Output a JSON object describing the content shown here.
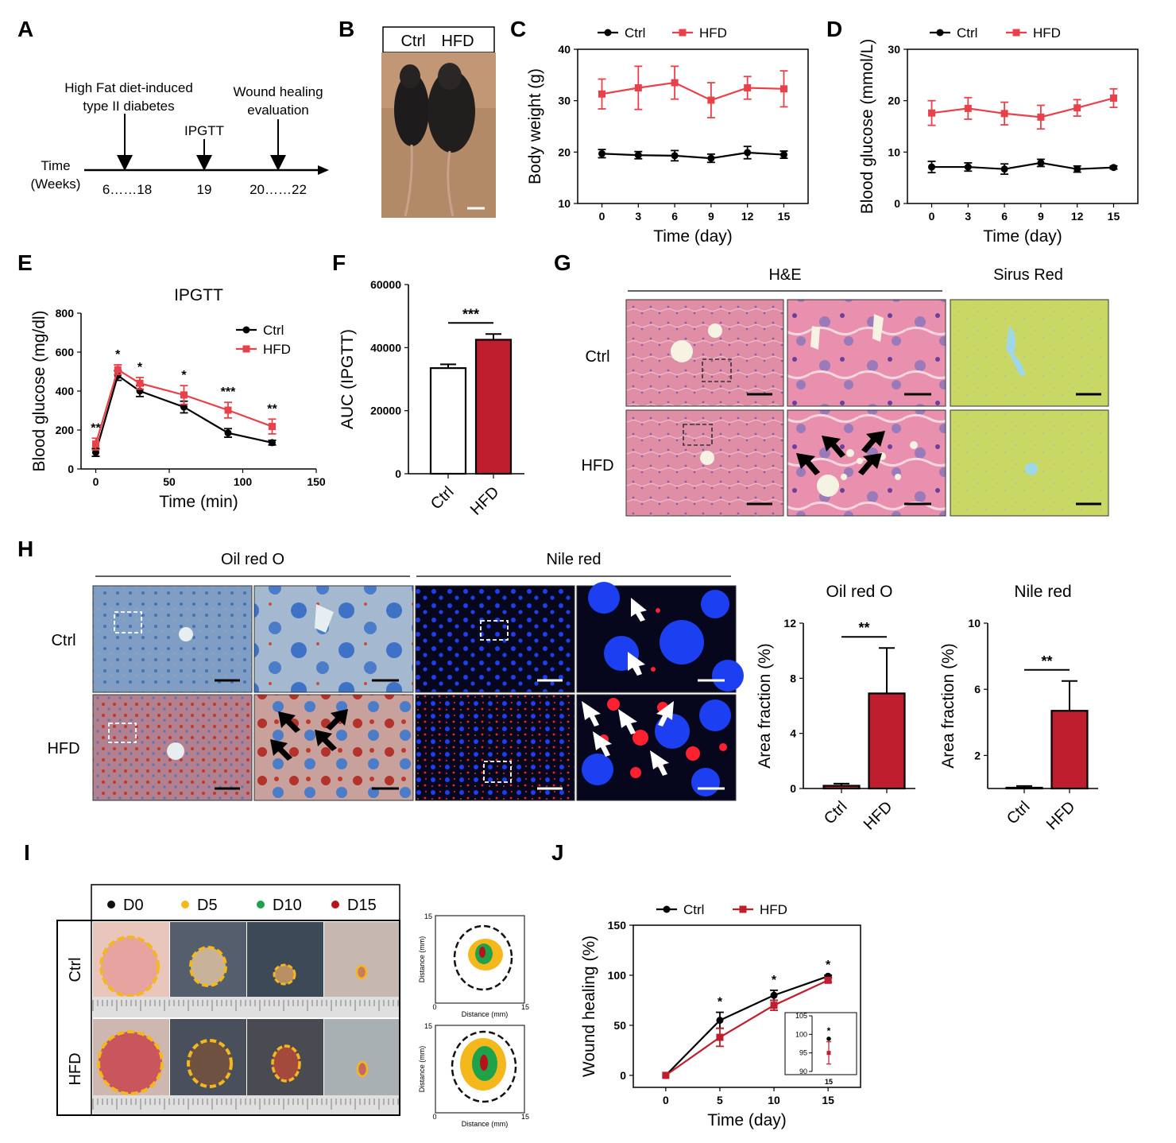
{
  "panel_labels": [
    "A",
    "B",
    "C",
    "D",
    "E",
    "F",
    "G",
    "H",
    "I",
    "J"
  ],
  "panel_a": {
    "event1": [
      "High Fat diet-induced",
      "type II diabetes"
    ],
    "event2": "IPGTT",
    "event3": [
      "Wound healing",
      "evaluation"
    ],
    "axis_label": [
      "Time",
      "(Weeks)"
    ],
    "ticks": [
      "6……18",
      "19",
      "20……22"
    ]
  },
  "panel_b": {
    "labels": [
      "Ctrl",
      "HFD"
    ]
  },
  "panel_g": {
    "headers": [
      "H&E",
      "Sirus Red"
    ],
    "rows": [
      "Ctrl",
      "HFD"
    ],
    "colors": {
      "he": "#df8ea6",
      "he_zoom": "#e890ad",
      "sirius": "#c9d765",
      "vessel": "#9ed8e8",
      "fat": "#f6f3e3"
    }
  },
  "panel_h": {
    "headers": [
      "Oil red O",
      "Nile red"
    ],
    "rows": [
      "Ctrl",
      "HFD"
    ],
    "colors": {
      "oil_ctrl": "#7f9ec5",
      "oil_hfd": "#b38090",
      "nile_bg": "#06061c",
      "nucleus": "#1d3ff2",
      "lipid": "#ff2030"
    }
  },
  "panel_i": {
    "legend": [
      {
        "label": "D0",
        "color": "#111111"
      },
      {
        "label": "D5",
        "color": "#f5b81c"
      },
      {
        "label": "D10",
        "color": "#1fa34a"
      },
      {
        "label": "D15",
        "color": "#b7131a"
      }
    ],
    "rows": [
      "Ctrl",
      "HFD"
    ],
    "map_axis": {
      "xlabel": "Distance (mm)",
      "ylabel": "Distance (mm)",
      "ticks": [
        "0",
        "15"
      ]
    }
  },
  "chart_data": [
    {
      "panel": "C",
      "type": "line",
      "x": [
        0,
        3,
        6,
        9,
        12,
        15
      ],
      "series": [
        {
          "name": "Ctrl",
          "color": "#000000",
          "marker": "circle",
          "values": [
            19.7,
            19.4,
            19.3,
            18.8,
            19.9,
            19.5
          ],
          "err": [
            0.8,
            0.7,
            1.0,
            0.8,
            1.2,
            0.7
          ]
        },
        {
          "name": "HFD",
          "color": "#e8414b",
          "marker": "square",
          "values": [
            31.3,
            32.5,
            33.5,
            30.1,
            32.5,
            32.3
          ],
          "err": [
            2.9,
            4.2,
            3.2,
            3.4,
            2.2,
            3.5
          ]
        }
      ],
      "xlabel": "Time (day)",
      "ylabel": "Body weight (g)",
      "xlim": [
        -2,
        17
      ],
      "ylim": [
        10,
        40
      ],
      "yticks": [
        10,
        20,
        30,
        40
      ],
      "legend": "top"
    },
    {
      "panel": "D",
      "type": "line",
      "x": [
        0,
        3,
        6,
        9,
        12,
        15
      ],
      "series": [
        {
          "name": "Ctrl",
          "color": "#000000",
          "marker": "circle",
          "values": [
            7.1,
            7.1,
            6.7,
            7.9,
            6.7,
            7.0
          ],
          "err": [
            1.1,
            0.8,
            1.0,
            0.7,
            0.6,
            0.3
          ]
        },
        {
          "name": "HFD",
          "color": "#e8414b",
          "marker": "square",
          "values": [
            17.6,
            18.5,
            17.5,
            16.8,
            18.6,
            20.5
          ],
          "err": [
            2.4,
            2.1,
            2.2,
            2.3,
            1.6,
            1.8
          ]
        }
      ],
      "xlabel": "Time (day)",
      "ylabel": "Blood glucose (mmol/L)",
      "xlim": [
        -2,
        17
      ],
      "ylim": [
        0,
        30
      ],
      "yticks": [
        0,
        10,
        20,
        30
      ],
      "legend": "top"
    },
    {
      "panel": "E",
      "type": "line",
      "title": "IPGTT",
      "x": [
        0,
        15,
        30,
        60,
        90,
        120
      ],
      "series": [
        {
          "name": "Ctrl",
          "color": "#000000",
          "marker": "circle",
          "values": [
            85,
            480,
            400,
            318,
            185,
            135
          ],
          "err": [
            20,
            25,
            28,
            30,
            22,
            12
          ]
        },
        {
          "name": "HFD",
          "color": "#e8414b",
          "marker": "square",
          "values": [
            128,
            510,
            440,
            380,
            302,
            218
          ],
          "err": [
            30,
            25,
            30,
            48,
            40,
            38
          ]
        }
      ],
      "annotations": [
        {
          "x": 0,
          "text": "**"
        },
        {
          "x": 15,
          "text": "*"
        },
        {
          "x": 30,
          "text": "*"
        },
        {
          "x": 60,
          "text": "*"
        },
        {
          "x": 90,
          "text": "***"
        },
        {
          "x": 120,
          "text": "**"
        }
      ],
      "xlabel": "Time (min)",
      "ylabel": "Blood glucose (mg/dl)",
      "xlim": [
        -10,
        150
      ],
      "ylim": [
        0,
        800
      ],
      "xticks": [
        0,
        50,
        100,
        150
      ],
      "yticks": [
        0,
        200,
        400,
        600,
        800
      ],
      "legend": "top-right"
    },
    {
      "panel": "F",
      "type": "bar",
      "categories": [
        "Ctrl",
        "HFD"
      ],
      "values": [
        33500,
        42500
      ],
      "err": [
        1200,
        1800
      ],
      "colors": [
        "#ffffff",
        "#be1e2d"
      ],
      "significance": "***",
      "xlabel": "",
      "ylabel": "AUC (IPGTT)",
      "ylim": [
        0,
        60000
      ],
      "yticks": [
        0,
        20000,
        40000,
        60000
      ]
    },
    {
      "panel": "H",
      "type": "bar",
      "title": "Oil red O",
      "categories": [
        "Ctrl",
        "HFD"
      ],
      "values": [
        0.2,
        6.9
      ],
      "err": [
        0.15,
        3.3
      ],
      "colors": [
        "#be1e2d",
        "#be1e2d"
      ],
      "significance": "**",
      "xlabel": "",
      "ylabel": "Area fraction (%)",
      "ylim": [
        0,
        12
      ],
      "yticks": [
        0,
        4,
        8,
        12
      ]
    },
    {
      "panel": "H",
      "type": "bar",
      "title": "Nile red",
      "categories": [
        "Ctrl",
        "HFD"
      ],
      "values": [
        0.05,
        4.7
      ],
      "err": [
        0.1,
        1.8
      ],
      "colors": [
        "#be1e2d",
        "#be1e2d"
      ],
      "significance": "**",
      "xlabel": "",
      "ylabel": "Area fraction (%)",
      "ylim": [
        0,
        10
      ],
      "yticks": [
        2,
        6,
        10
      ]
    },
    {
      "panel": "J",
      "type": "line",
      "x": [
        0,
        5,
        10,
        15
      ],
      "series": [
        {
          "name": "Ctrl",
          "color": "#000000",
          "marker": "circle",
          "values": [
            0,
            55,
            80,
            99
          ],
          "err": [
            0,
            8,
            5,
            1
          ]
        },
        {
          "name": "HFD",
          "color": "#be1e2d",
          "marker": "square",
          "values": [
            0,
            38,
            70,
            95
          ],
          "err": [
            0,
            9,
            5,
            2
          ]
        }
      ],
      "annotations": [
        {
          "x": 5,
          "text": "*"
        },
        {
          "x": 10,
          "text": "*"
        },
        {
          "x": 15,
          "text": "*"
        }
      ],
      "xlabel": "Time (day)",
      "ylabel": "Wound healing (%)",
      "xlim": [
        -3,
        18
      ],
      "ylim": [
        -12,
        150
      ],
      "xticks": [
        0,
        5,
        10,
        15
      ],
      "yticks": [
        0,
        50,
        100,
        150
      ],
      "legend": "top",
      "inset": {
        "x": [
          15
        ],
        "ctrl": [
          98.8
        ],
        "hfd": [
          95.0
        ],
        "ctrl_err": [
          0.5
        ],
        "hfd_err": [
          3.0
        ],
        "ylim": [
          90,
          105
        ],
        "yticks": [
          90,
          95,
          100,
          105
        ],
        "xticks": [
          15
        ],
        "annotation": "*"
      }
    }
  ]
}
